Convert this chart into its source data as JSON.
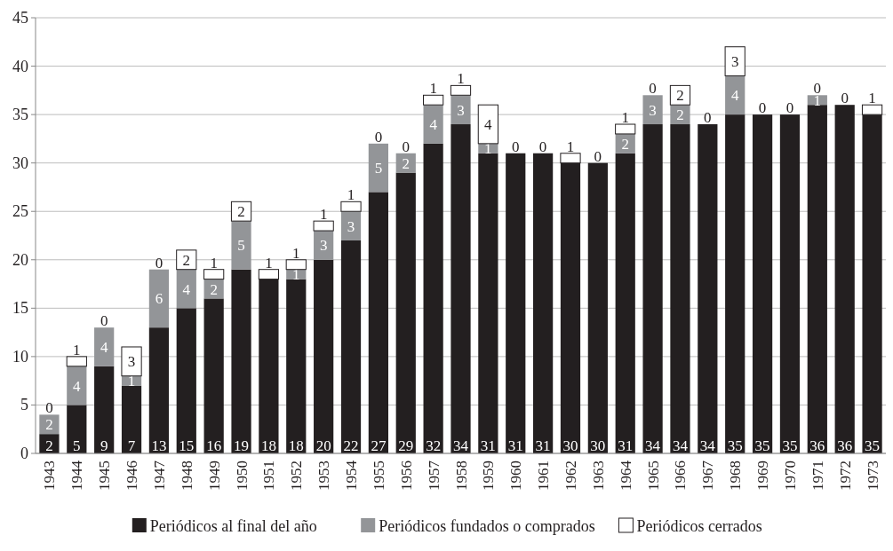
{
  "chart_data": {
    "type": "bar",
    "stacked": true,
    "categories": [
      "1943",
      "1944",
      "1945",
      "1946",
      "1947",
      "1948",
      "1949",
      "1950",
      "1951",
      "1952",
      "1953",
      "1954",
      "1955",
      "1956",
      "1957",
      "1958",
      "1959",
      "1960",
      "1961",
      "1962",
      "1963",
      "1964",
      "1965",
      "1966",
      "1967",
      "1968",
      "1969",
      "1970",
      "1971",
      "1972",
      "1973"
    ],
    "series": [
      {
        "name": "Periódicos al final del año",
        "color": "#231f20",
        "values": [
          2,
          5,
          9,
          7,
          13,
          15,
          16,
          19,
          18,
          18,
          20,
          22,
          27,
          29,
          32,
          34,
          31,
          31,
          31,
          30,
          30,
          31,
          34,
          34,
          34,
          35,
          35,
          35,
          36,
          36,
          35
        ],
        "value_labels": [
          "2",
          "5",
          "9",
          "7",
          "13",
          "15",
          "16",
          "19",
          "18",
          "18",
          "20",
          "22",
          "27",
          "29",
          "32",
          "34",
          "31",
          "31",
          "31",
          "30",
          "30",
          "31",
          "34",
          "34",
          "34",
          "35",
          "35",
          "35",
          "36",
          "36",
          "35"
        ]
      },
      {
        "name": "Periódicos fundados o comprados",
        "color": "#939598",
        "values": [
          2,
          4,
          4,
          1,
          6,
          4,
          2,
          5,
          0,
          1,
          3,
          3,
          5,
          2,
          4,
          3,
          1,
          0,
          0,
          0,
          0,
          2,
          3,
          2,
          0,
          4,
          0,
          0,
          1,
          0,
          0
        ],
        "value_labels": [
          "2",
          "4",
          "4",
          "1",
          "6",
          "4",
          "2",
          "5",
          null,
          "1",
          "3",
          "3",
          "5",
          "2",
          "4",
          "3",
          "1",
          null,
          null,
          null,
          null,
          "2",
          "3",
          "2",
          null,
          "4",
          null,
          null,
          "1",
          null,
          null
        ]
      },
      {
        "name": "Periódicos cerrados",
        "color": "#ffffff",
        "values": [
          0,
          1,
          0,
          3,
          0,
          2,
          1,
          2,
          1,
          1,
          1,
          1,
          0,
          0,
          1,
          1,
          4,
          0,
          0,
          1,
          0,
          1,
          0,
          2,
          0,
          3,
          0,
          0,
          0,
          0,
          1
        ],
        "value_labels": [
          "0",
          "1",
          "0",
          "3",
          "0",
          "2",
          "1",
          "2",
          "1",
          "1",
          "1",
          "1",
          "0",
          "0",
          "1",
          "1",
          "4",
          "0",
          "0",
          "1",
          "0",
          "1",
          "0",
          "2",
          "0",
          "3",
          "0",
          "0",
          "0",
          "0",
          "1"
        ]
      }
    ],
    "ylim": [
      0,
      45
    ],
    "yticks": [
      0,
      5,
      10,
      15,
      20,
      25,
      30,
      35,
      40,
      45
    ],
    "grid": "y",
    "legend": "bottom"
  }
}
